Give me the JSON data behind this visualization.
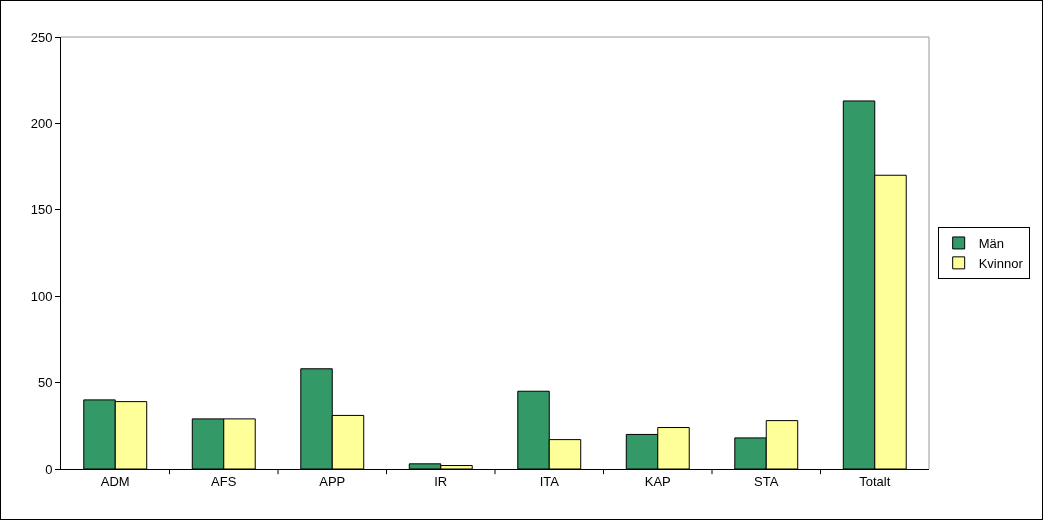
{
  "chart_data": {
    "type": "bar",
    "categories": [
      "ADM",
      "AFS",
      "APP",
      "IR",
      "ITA",
      "KAP",
      "STA",
      "Totalt"
    ],
    "series": [
      {
        "name": "Män",
        "color": "#339966",
        "values": [
          40,
          29,
          58,
          3,
          45,
          20,
          18,
          213
        ]
      },
      {
        "name": "Kvinnor",
        "color": "#ffff99",
        "values": [
          39,
          29,
          31,
          2,
          17,
          24,
          28,
          170
        ]
      }
    ],
    "ylim": [
      0,
      250
    ],
    "yticks": [
      0,
      50,
      100,
      150,
      200,
      250
    ],
    "grid": false,
    "legend": "right"
  }
}
